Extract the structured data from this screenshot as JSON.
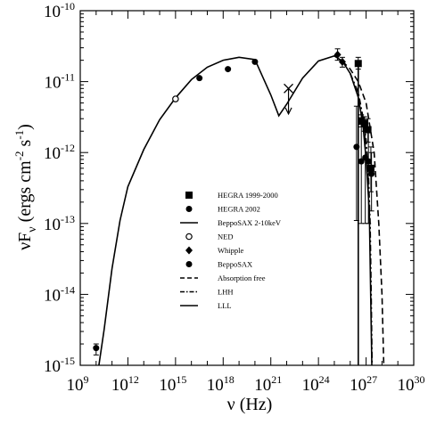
{
  "chart_data": {
    "type": "scatter",
    "xlabel": "ν (Hz)",
    "ylabel": "νF_ν (ergs cm^-2 s^-1)",
    "x_scale": "log",
    "y_scale": "log",
    "xlim": [
      1000000000.0,
      1e+30
    ],
    "ylim": [
      1e-15,
      1e-10
    ],
    "grid": false,
    "legend_position": "center",
    "x_ticks": [
      {
        "base": "10",
        "exp": "9",
        "value": 1000000000.0
      },
      {
        "base": "10",
        "exp": "12",
        "value": 1000000000000.0
      },
      {
        "base": "10",
        "exp": "15",
        "value": 1000000000000000.0
      },
      {
        "base": "10",
        "exp": "18",
        "value": 1e+18
      },
      {
        "base": "10",
        "exp": "21",
        "value": 1e+21
      },
      {
        "base": "10",
        "exp": "24",
        "value": 1e+24
      },
      {
        "base": "10",
        "exp": "27",
        "value": 1e+27
      },
      {
        "base": "10",
        "exp": "30",
        "value": 1e+30
      }
    ],
    "y_ticks": [
      {
        "base": "10",
        "exp": "-15",
        "value": 1e-15
      },
      {
        "base": "10",
        "exp": "-14",
        "value": 1e-14
      },
      {
        "base": "10",
        "exp": "-13",
        "value": 1e-13
      },
      {
        "base": "10",
        "exp": "-12",
        "value": 1e-12
      },
      {
        "base": "10",
        "exp": "-11",
        "value": 1e-11
      },
      {
        "base": "10",
        "exp": "-10",
        "value": 1e-10
      }
    ],
    "legend": [
      {
        "label": "HEGRA 1999-2000",
        "marker": "filled-square"
      },
      {
        "label": "HEGRA 2002",
        "marker": "filled-circle"
      },
      {
        "label": "BeppoSAX 2-10keV",
        "marker": "solid-line"
      },
      {
        "label": "NED",
        "marker": "open-circle"
      },
      {
        "label": "Whipple",
        "marker": "filled-diamond"
      },
      {
        "label": "BeppoSAX",
        "marker": "filled-circle"
      },
      {
        "label": "Absorption free",
        "marker": "dashed-line"
      },
      {
        "label": "LHH",
        "marker": "dash-dot-line"
      },
      {
        "label": "LLL",
        "marker": "solid-line"
      }
    ],
    "series": [
      {
        "name": "HEGRA 1999-2000",
        "marker": "filled-square",
        "points": [
          {
            "x": 3.2e+26,
            "y": 1.8e-11,
            "yerr": [
              1.5e-11,
              2.2e-11
            ]
          },
          {
            "x": 5e+26,
            "y": 2.8e-12,
            "yerr": [
              2.3e-12,
              3.4e-12
            ]
          },
          {
            "x": 7.9e+26,
            "y": 2.6e-12,
            "yerr": [
              2e-12,
              3.2e-12
            ]
          },
          {
            "x": 1.3e+27,
            "y": 2.1e-12,
            "yerr": [
              1.4e-12,
              3e-12
            ]
          },
          {
            "x": 2e+27,
            "y": 6e-13,
            "yerr": [
              2.8e-13,
              1.2e-12
            ]
          }
        ]
      },
      {
        "name": "HEGRA 2002",
        "marker": "filled-circle",
        "points": [
          {
            "x": 2.5e+26,
            "y": 1.2e-12,
            "yerr": [
              1.1e-13,
              4.5e-12
            ]
          },
          {
            "x": 5e+26,
            "y": 7.5e-13,
            "yerr": [
              1e-13,
              2.5e-12
            ]
          },
          {
            "x": 8.9e+26,
            "y": 8.5e-13,
            "yerr": [
              1e-13,
              2.5e-12
            ]
          },
          {
            "x": 1.4e+27,
            "y": 7.5e-13,
            "yerr": [
              1e-13,
              2e-12
            ]
          },
          {
            "x": 2.2e+27,
            "y": 5e-13,
            "yerr": [
              1.5e-13,
              1e-12
            ]
          }
        ]
      },
      {
        "name": "NED",
        "marker": "open-circle",
        "points": [
          {
            "x": 1000000000000000.0,
            "y": 5.7e-12
          }
        ]
      },
      {
        "name": "Whipple",
        "marker": "filled-diamond",
        "points": [
          {
            "x": 1.6e+25,
            "y": 2.4e-11,
            "yerr": [
              2e-11,
              2.9e-11
            ]
          },
          {
            "x": 3.2e+25,
            "y": 1.9e-11,
            "yerr": [
              1.6e-11,
              2.2e-11
            ]
          }
        ]
      },
      {
        "name": "BeppoSAX",
        "marker": "filled-circle",
        "points": [
          {
            "x": 10000000000.0,
            "y": 1.75e-15,
            "yerr": [
              1.4e-15,
              2e-15
            ]
          },
          {
            "x": 3.2e+16,
            "y": 1.12e-11
          },
          {
            "x": 2e+18,
            "y": 1.5e-11
          },
          {
            "x": 1e+20,
            "y": 1.9e-11
          }
        ]
      },
      {
        "name": "X upper limit",
        "marker": "cross",
        "points": [
          {
            "x": 1.3e+22,
            "y": 8e-12,
            "arrow_to": 3.5e-12
          }
        ]
      },
      {
        "name": "LLL",
        "style": "solid",
        "points": [
          [
            15000000000.0,
            1e-15
          ],
          [
            32000000000.0,
            3.2e-15
          ],
          [
            100000000000.0,
            2.3e-14
          ],
          [
            320000000000.0,
            1.1e-13
          ],
          [
            1000000000000.0,
            3.3e-13
          ],
          [
            10000000000000.0,
            1.1e-12
          ],
          [
            100000000000000.0,
            2.9e-12
          ],
          [
            1000000000000000.0,
            5.9e-12
          ],
          [
            1e+16,
            1.07e-11
          ],
          [
            1e+17,
            1.6e-11
          ],
          [
            1e+18,
            2e-11
          ],
          [
            1e+19,
            2.2e-11
          ],
          [
            1e+20,
            2.05e-11
          ],
          [
            1e+21,
            6.5e-12
          ],
          [
            3.2e+21,
            3.3e-12
          ],
          [
            1e+22,
            4.8e-12
          ],
          [
            1e+23,
            1.12e-11
          ],
          [
            1e+24,
            1.95e-11
          ],
          [
            1e+25,
            2.3e-11
          ],
          [
            3.2e+25,
            1.95e-11
          ],
          [
            1e+26,
            1.3e-11
          ],
          [
            3.2e+26,
            6e-12
          ],
          [
            6.3e+26,
            2.5e-12
          ],
          [
            1e+27,
            8e-13
          ],
          [
            1.6e+27,
            1.5e-13
          ],
          [
            2.3e+27,
            1e-15
          ]
        ]
      },
      {
        "name": "LHH",
        "style": "dash-dot",
        "points": [
          [
            1e+26,
            1.3e-11
          ],
          [
            3.2e+26,
            7e-12
          ],
          [
            6.3e+26,
            3.2e-12
          ],
          [
            1e+27,
            1.5e-12
          ],
          [
            1.4e+27,
            5e-13
          ],
          [
            1.8e+27,
            1e-13
          ],
          [
            2.1e+27,
            1e-14
          ],
          [
            2.4e+27,
            1e-15
          ]
        ]
      },
      {
        "name": "Absorption free",
        "style": "dashed",
        "points": [
          [
            3.2e+25,
            1.95e-11
          ],
          [
            1e+26,
            1.5e-11
          ],
          [
            3.2e+26,
            1e-11
          ],
          [
            1e+27,
            5e-12
          ],
          [
            3.2e+27,
            1e-12
          ],
          [
            6.3e+27,
            1e-13
          ],
          [
            1e+28,
            1e-14
          ],
          [
            1.3e+28,
            1e-15
          ]
        ]
      },
      {
        "name": "BeppoSAX 2-10keV",
        "style": "solid",
        "points": [
          [
            3.2e+26,
            1e-15
          ],
          [
            3.2e+26,
            2e-11
          ]
        ]
      }
    ]
  }
}
